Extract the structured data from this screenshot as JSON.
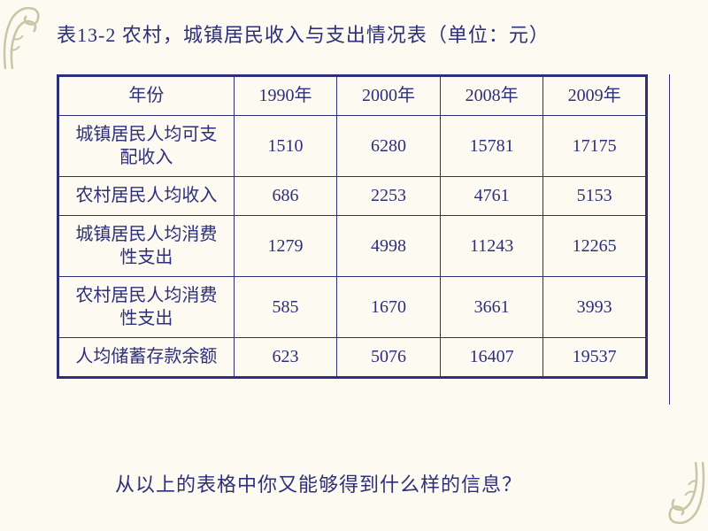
{
  "title": "表13-2  农村，城镇居民收入与支出情况表（单位：元）",
  "columns": [
    "年份",
    "1990年",
    "2000年",
    "2008年",
    "2009年"
  ],
  "rows": [
    {
      "label": "城镇居民人均可支\n配收入",
      "values": [
        "1510",
        "6280",
        "15781",
        "17175"
      ]
    },
    {
      "label": "农村居民人均收入",
      "values": [
        "686",
        "2253",
        "4761",
        "5153"
      ]
    },
    {
      "label": "城镇居民人均消费\n性支出",
      "values": [
        "1279",
        "4998",
        "11243",
        "12265"
      ]
    },
    {
      "label": "农村居民人均消费\n性支出",
      "values": [
        "585",
        "1670",
        "3661",
        "3993"
      ]
    },
    {
      "label": "人均储蓄存款余额",
      "values": [
        "623",
        "5076",
        "16407",
        "19537"
      ]
    }
  ],
  "question": "从以上的表格中你又能够得到什么样的信息？",
  "styling": {
    "background_color": "#fdfaf2",
    "text_color": "#2d2f7a",
    "border_color": "#2d2f7a",
    "title_fontsize": 22,
    "cell_fontsize": 20,
    "question_fontsize": 22,
    "table_border_outer": 3,
    "table_border_inner": 1.5,
    "watermark_color": "#c9c6a8",
    "font_family": "SimSun"
  }
}
